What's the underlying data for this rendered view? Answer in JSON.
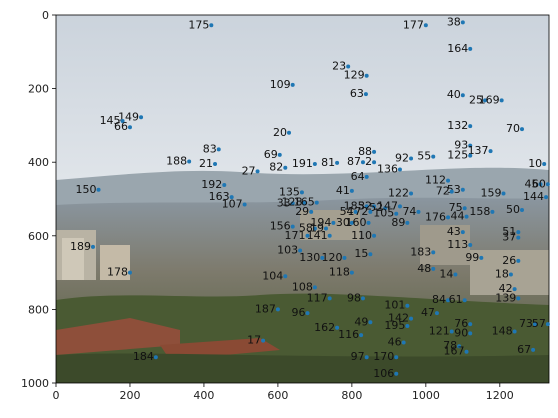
{
  "chart_data": {
    "type": "scatter",
    "title": "",
    "xlabel": "",
    "ylabel": "",
    "xlim": [
      0,
      1333
    ],
    "ylim": [
      1000,
      0
    ],
    "y_inverted": true,
    "grid": false,
    "legend": "none",
    "background": "photograph of a city skyline viewed from a hillside (buildings, trees, distant bay and hills)",
    "marker_color": "#1f77b4",
    "xticks": [
      {
        "value": 0,
        "label": "0"
      },
      {
        "value": 200,
        "label": "200"
      },
      {
        "value": 400,
        "label": "400"
      },
      {
        "value": 600,
        "label": "600"
      },
      {
        "value": 800,
        "label": "800"
      },
      {
        "value": 1000,
        "label": "1000"
      },
      {
        "value": 1200,
        "label": "1200"
      }
    ],
    "yticks": [
      {
        "value": 0,
        "label": "0"
      },
      {
        "value": 200,
        "label": "200"
      },
      {
        "value": 400,
        "label": "400"
      },
      {
        "value": 600,
        "label": "600"
      },
      {
        "value": 800,
        "label": "800"
      },
      {
        "value": 1000,
        "label": "1000"
      }
    ],
    "points": [
      {
        "label": "175",
        "x": 420,
        "y": 28
      },
      {
        "label": "177",
        "x": 1000,
        "y": 28
      },
      {
        "label": "38",
        "x": 1100,
        "y": 20
      },
      {
        "label": "164",
        "x": 1120,
        "y": 92
      },
      {
        "label": "23",
        "x": 790,
        "y": 140
      },
      {
        "label": "129",
        "x": 840,
        "y": 165
      },
      {
        "label": "109",
        "x": 640,
        "y": 190
      },
      {
        "label": "63",
        "x": 838,
        "y": 215
      },
      {
        "label": "40",
        "x": 1100,
        "y": 218
      },
      {
        "label": "25",
        "x": 1160,
        "y": 232
      },
      {
        "label": "169",
        "x": 1205,
        "y": 232
      },
      {
        "label": "149",
        "x": 230,
        "y": 278
      },
      {
        "label": "145",
        "x": 180,
        "y": 288
      },
      {
        "label": "66",
        "x": 200,
        "y": 305
      },
      {
        "label": "132",
        "x": 1120,
        "y": 302
      },
      {
        "label": "70",
        "x": 1260,
        "y": 310
      },
      {
        "label": "20",
        "x": 630,
        "y": 320
      },
      {
        "label": "93",
        "x": 1120,
        "y": 355
      },
      {
        "label": "83",
        "x": 440,
        "y": 365
      },
      {
        "label": "88",
        "x": 860,
        "y": 372
      },
      {
        "label": "137",
        "x": 1175,
        "y": 370
      },
      {
        "label": "125",
        "x": 1120,
        "y": 382
      },
      {
        "label": "69",
        "x": 605,
        "y": 380
      },
      {
        "label": "55",
        "x": 1020,
        "y": 385
      },
      {
        "label": "92",
        "x": 960,
        "y": 390
      },
      {
        "label": "188",
        "x": 360,
        "y": 398
      },
      {
        "label": "81",
        "x": 760,
        "y": 402
      },
      {
        "label": "87",
        "x": 830,
        "y": 400
      },
      {
        "label": "2",
        "x": 860,
        "y": 400
      },
      {
        "label": "191",
        "x": 700,
        "y": 405
      },
      {
        "label": "21",
        "x": 430,
        "y": 405
      },
      {
        "label": "10",
        "x": 1320,
        "y": 405
      },
      {
        "label": "82",
        "x": 620,
        "y": 415
      },
      {
        "label": "136",
        "x": 930,
        "y": 420
      },
      {
        "label": "27",
        "x": 545,
        "y": 425
      },
      {
        "label": "64",
        "x": 840,
        "y": 440
      },
      {
        "label": "112",
        "x": 1060,
        "y": 450
      },
      {
        "label": "192",
        "x": 455,
        "y": 462
      },
      {
        "label": "45",
        "x": 1310,
        "y": 460
      },
      {
        "label": "60",
        "x": 1330,
        "y": 460
      },
      {
        "label": "150",
        "x": 115,
        "y": 475
      },
      {
        "label": "53",
        "x": 1100,
        "y": 475
      },
      {
        "label": "41",
        "x": 800,
        "y": 478
      },
      {
        "label": "72",
        "x": 1070,
        "y": 480
      },
      {
        "label": "135",
        "x": 665,
        "y": 482
      },
      {
        "label": "122",
        "x": 960,
        "y": 485
      },
      {
        "label": "159",
        "x": 1210,
        "y": 485
      },
      {
        "label": "163",
        "x": 475,
        "y": 495
      },
      {
        "label": "144",
        "x": 1325,
        "y": 495
      },
      {
        "label": "107",
        "x": 510,
        "y": 515
      },
      {
        "label": "33",
        "x": 640,
        "y": 512
      },
      {
        "label": "128",
        "x": 672,
        "y": 510
      },
      {
        "label": "165",
        "x": 705,
        "y": 510
      },
      {
        "label": "185",
        "x": 840,
        "y": 520
      },
      {
        "label": "32",
        "x": 860,
        "y": 520
      },
      {
        "label": "52",
        "x": 890,
        "y": 525
      },
      {
        "label": "147",
        "x": 930,
        "y": 520
      },
      {
        "label": "75",
        "x": 1105,
        "y": 525
      },
      {
        "label": "50",
        "x": 1260,
        "y": 530
      },
      {
        "label": "29",
        "x": 690,
        "y": 535
      },
      {
        "label": "54",
        "x": 810,
        "y": 535
      },
      {
        "label": "172",
        "x": 850,
        "y": 535
      },
      {
        "label": "105",
        "x": 920,
        "y": 540
      },
      {
        "label": "74",
        "x": 980,
        "y": 535
      },
      {
        "label": "158",
        "x": 1180,
        "y": 535
      },
      {
        "label": "176",
        "x": 1060,
        "y": 550
      },
      {
        "label": "44",
        "x": 1110,
        "y": 548
      },
      {
        "label": "194",
        "x": 750,
        "y": 565
      },
      {
        "label": "30",
        "x": 800,
        "y": 565
      },
      {
        "label": "160",
        "x": 845,
        "y": 565
      },
      {
        "label": "89",
        "x": 950,
        "y": 565
      },
      {
        "label": "156",
        "x": 640,
        "y": 575
      },
      {
        "label": "58",
        "x": 700,
        "y": 580
      },
      {
        "label": "19",
        "x": 730,
        "y": 580
      },
      {
        "label": "43",
        "x": 1100,
        "y": 590
      },
      {
        "label": "51",
        "x": 1250,
        "y": 590
      },
      {
        "label": "171",
        "x": 680,
        "y": 600
      },
      {
        "label": "141",
        "x": 740,
        "y": 600
      },
      {
        "label": "110",
        "x": 860,
        "y": 600
      },
      {
        "label": "113",
        "x": 1120,
        "y": 625
      },
      {
        "label": "37",
        "x": 1250,
        "y": 605
      },
      {
        "label": "189",
        "x": 100,
        "y": 630
      },
      {
        "label": "103",
        "x": 660,
        "y": 640
      },
      {
        "label": "130",
        "x": 720,
        "y": 660
      },
      {
        "label": "120",
        "x": 780,
        "y": 660
      },
      {
        "label": "15",
        "x": 850,
        "y": 650
      },
      {
        "label": "183",
        "x": 1020,
        "y": 645
      },
      {
        "label": "99",
        "x": 1150,
        "y": 660
      },
      {
        "label": "26",
        "x": 1250,
        "y": 668
      },
      {
        "label": "178",
        "x": 200,
        "y": 700
      },
      {
        "label": "104",
        "x": 620,
        "y": 710
      },
      {
        "label": "118",
        "x": 800,
        "y": 700
      },
      {
        "label": "48",
        "x": 1020,
        "y": 690
      },
      {
        "label": "14",
        "x": 1080,
        "y": 705
      },
      {
        "label": "18",
        "x": 1230,
        "y": 705
      },
      {
        "label": "108",
        "x": 700,
        "y": 740
      },
      {
        "label": "42",
        "x": 1240,
        "y": 745
      },
      {
        "label": "117",
        "x": 740,
        "y": 770
      },
      {
        "label": "98",
        "x": 830,
        "y": 770
      },
      {
        "label": "139",
        "x": 1250,
        "y": 770
      },
      {
        "label": "187",
        "x": 600,
        "y": 800
      },
      {
        "label": "101",
        "x": 950,
        "y": 790
      },
      {
        "label": "84",
        "x": 1060,
        "y": 775
      },
      {
        "label": "61",
        "x": 1105,
        "y": 775
      },
      {
        "label": "96",
        "x": 680,
        "y": 810
      },
      {
        "label": "47",
        "x": 1030,
        "y": 810
      },
      {
        "label": "49",
        "x": 850,
        "y": 835
      },
      {
        "label": "142",
        "x": 960,
        "y": 825
      },
      {
        "label": "73",
        "x": 1295,
        "y": 840
      },
      {
        "label": "57",
        "x": 1330,
        "y": 840
      },
      {
        "label": "162",
        "x": 760,
        "y": 850
      },
      {
        "label": "195",
        "x": 950,
        "y": 845
      },
      {
        "label": "76",
        "x": 1120,
        "y": 840
      },
      {
        "label": "121",
        "x": 1070,
        "y": 860
      },
      {
        "label": "90",
        "x": 1120,
        "y": 865
      },
      {
        "label": "148",
        "x": 1240,
        "y": 860
      },
      {
        "label": "116",
        "x": 825,
        "y": 870
      },
      {
        "label": "17",
        "x": 560,
        "y": 885
      },
      {
        "label": "46",
        "x": 940,
        "y": 890
      },
      {
        "label": "78",
        "x": 1090,
        "y": 900
      },
      {
        "label": "167",
        "x": 1110,
        "y": 915
      },
      {
        "label": "67",
        "x": 1290,
        "y": 910
      },
      {
        "label": "184",
        "x": 270,
        "y": 930
      },
      {
        "label": "97",
        "x": 840,
        "y": 930
      },
      {
        "label": "170",
        "x": 920,
        "y": 930
      },
      {
        "label": "106",
        "x": 920,
        "y": 975
      }
    ]
  }
}
